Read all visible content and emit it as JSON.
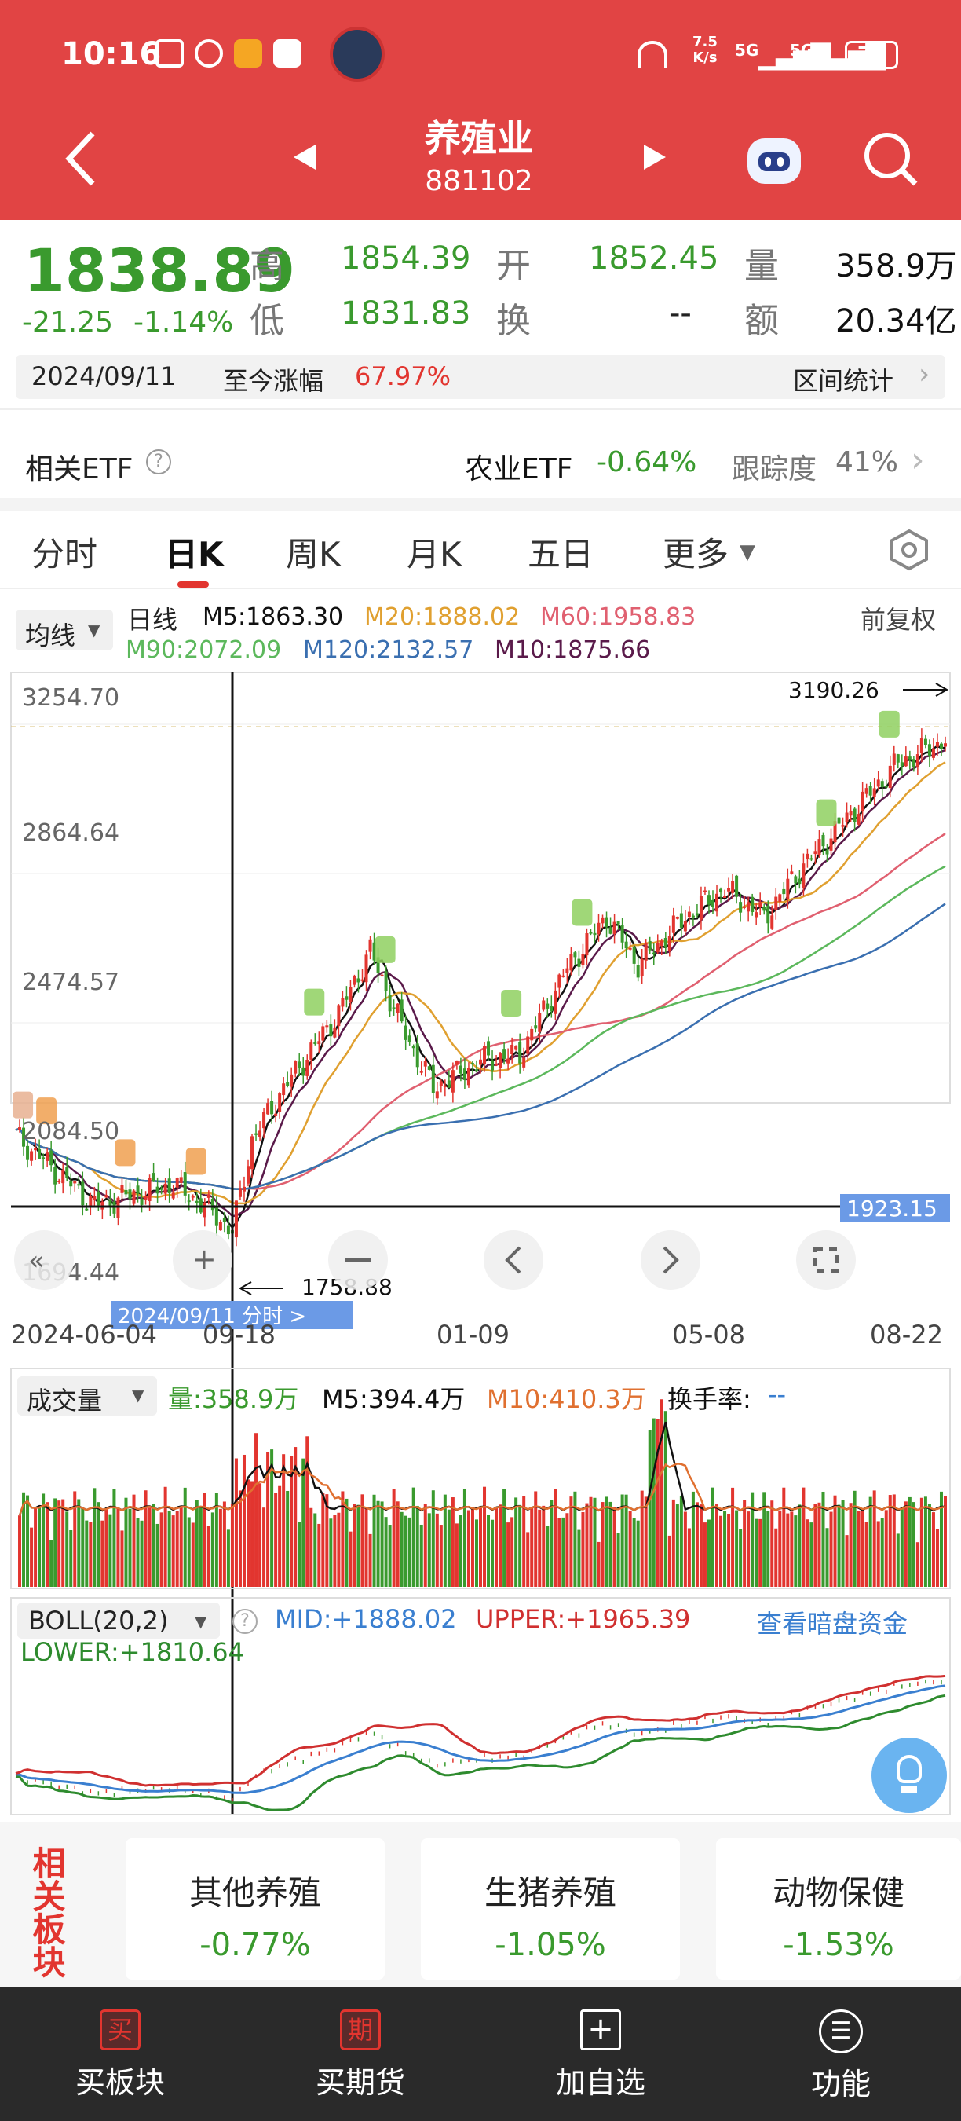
{
  "status": {
    "time": "10:16",
    "speed_top": "7.5",
    "speed_bottom": "K/s",
    "network1": "5G",
    "network2": "5G",
    "battery": "79"
  },
  "nav": {
    "title": "养殖业",
    "code": "881102"
  },
  "quote": {
    "price": "1838.89",
    "change": "-21.25",
    "change_pct": "-1.14%",
    "high_label": "高",
    "high": "1854.39",
    "low_label": "低",
    "low": "1831.83",
    "open_label": "开",
    "open": "1852.45",
    "turnover_label": "换",
    "turnover": "--",
    "volume_label": "量",
    "volume": "358.9万",
    "amount_label": "额",
    "amount": "20.34亿",
    "date": "2024/09/11",
    "since_label": "至今涨幅",
    "since_value": "67.97%",
    "interval_stats": "区间统计"
  },
  "etf": {
    "label": "相关ETF",
    "name": "农业ETF",
    "change": "-0.64%",
    "track_label": "跟踪度",
    "track": "41%"
  },
  "tabs": [
    "分时",
    "日K",
    "周K",
    "月K",
    "五日",
    "更多"
  ],
  "active_tab": 1,
  "ma": {
    "selector": "均线",
    "period": "日线",
    "m5": "M5:1863.30",
    "m20": "M20:1888.02",
    "m60": "M60:1958.83",
    "m90": "M90:2072.09",
    "m120": "M120:2132.57",
    "m10": "M10:1875.66",
    "adjust": "前复权"
  },
  "kline": {
    "y_ticks": [
      "3254.70",
      "2864.64",
      "2474.57",
      "2084.50",
      "1694.44"
    ],
    "max_label": "3190.26",
    "min_label": "1758.88",
    "crosshair_value": "1923.15",
    "x_labels": [
      "2024-06-04",
      "09-18",
      "01-09",
      "05-08",
      "08-22"
    ],
    "date_tag": "2024/09/11  分时  >"
  },
  "volume": {
    "selector": "成交量",
    "vol": "量:358.9万",
    "m5": "M5:394.4万",
    "m10": "M10:410.3万",
    "turnover": "换手率:",
    "turnover_value": "--"
  },
  "boll": {
    "selector": "BOLL(20,2)",
    "mid": "MID:+1888.02",
    "upper": "UPPER:+1965.39",
    "lower": "LOWER:+1810.64",
    "dark_pool": "查看暗盘资金"
  },
  "sectors": {
    "title": "相关板块",
    "items": [
      {
        "name": "其他养殖",
        "change": "-0.77%"
      },
      {
        "name": "生猪养殖",
        "change": "-1.05%"
      },
      {
        "name": "动物保健",
        "change": "-1.53%"
      }
    ]
  },
  "bottom": [
    {
      "icon": "买",
      "label": "买板块"
    },
    {
      "icon": "期",
      "label": "买期货"
    },
    {
      "icon": "+",
      "label": "加自选"
    },
    {
      "icon": "☰",
      "label": "功能"
    }
  ],
  "colors": {
    "up": "#e2352f",
    "down": "#3a9a2e",
    "header": "#e14444",
    "m5": "#111111",
    "m10": "#5a1a4a",
    "m20": "#e0a030",
    "m60": "#e06070",
    "m90": "#5cb85c",
    "m120": "#3a6fb0",
    "boll_mid": "#3a7fd0",
    "boll_upper": "#d03030",
    "boll_lower": "#2e8b2e"
  }
}
